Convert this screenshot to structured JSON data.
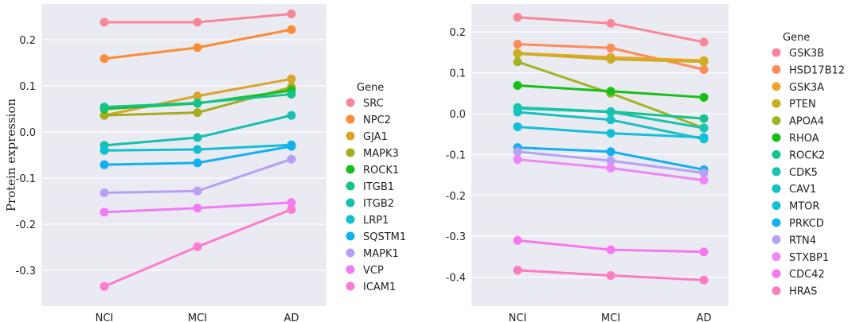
{
  "chart_data": [
    {
      "type": "line",
      "title": "",
      "xlabel": "",
      "ylabel": "Protein expression",
      "categories": [
        "NCI",
        "MCI",
        "AD"
      ],
      "ylim": [
        -0.37,
        0.28
      ],
      "yticks": [
        -0.3,
        -0.2,
        -0.1,
        0.0,
        0.1,
        0.2
      ],
      "grid": true,
      "legend_title": "Gene",
      "legend_position": "right",
      "series": [
        {
          "name": "SRC",
          "color": "#f8869b",
          "values": [
            0.238,
            0.238,
            0.256
          ]
        },
        {
          "name": "NPC2",
          "color": "#fa8c35",
          "values": [
            0.159,
            0.183,
            0.222
          ]
        },
        {
          "name": "GJA1",
          "color": "#d9a52b",
          "values": [
            0.036,
            0.078,
            0.115
          ]
        },
        {
          "name": "MAPK3",
          "color": "#a3ad1e",
          "values": [
            0.036,
            0.042,
            0.097
          ]
        },
        {
          "name": "ROCK1",
          "color": "#18c01d",
          "values": [
            0.05,
            0.062,
            0.09
          ]
        },
        {
          "name": "ITGB1",
          "color": "#14c38a",
          "values": [
            0.054,
            0.063,
            0.082
          ]
        },
        {
          "name": "ITGB2",
          "color": "#18bfb0",
          "values": [
            -0.029,
            -0.012,
            0.036
          ]
        },
        {
          "name": "LRP1",
          "color": "#12bfd0",
          "values": [
            -0.04,
            -0.038,
            -0.028
          ]
        },
        {
          "name": "SQSTM1",
          "color": "#12b0f0",
          "values": [
            -0.071,
            -0.067,
            -0.031
          ]
        },
        {
          "name": "MAPK1",
          "color": "#b5a0f5",
          "values": [
            -0.132,
            -0.128,
            -0.059
          ]
        },
        {
          "name": "VCP",
          "color": "#f07cf5",
          "values": [
            -0.174,
            -0.165,
            -0.153
          ]
        },
        {
          "name": "ICAM1",
          "color": "#fc7cd0",
          "values": [
            -0.335,
            -0.249,
            -0.168
          ]
        }
      ]
    },
    {
      "type": "line",
      "title": "",
      "xlabel": "",
      "ylabel": "",
      "categories": [
        "NCI",
        "MCI",
        "AD"
      ],
      "ylim": [
        -0.45,
        0.26
      ],
      "yticks": [
        -0.4,
        -0.3,
        -0.2,
        -0.1,
        0.0,
        0.1,
        0.2
      ],
      "grid": true,
      "legend_title": "Gene",
      "legend_position": "right",
      "series": [
        {
          "name": "GSK3B",
          "color": "#fa8799",
          "values": [
            0.236,
            0.221,
            0.175
          ]
        },
        {
          "name": "HSD17B12",
          "color": "#fc8c5a",
          "values": [
            0.17,
            0.161,
            0.108
          ]
        },
        {
          "name": "GSK3A",
          "color": "#f2a22c",
          "values": [
            0.148,
            0.138,
            0.13
          ]
        },
        {
          "name": "PTEN",
          "color": "#c8ae20",
          "values": [
            0.147,
            0.133,
            0.127
          ]
        },
        {
          "name": "APOA4",
          "color": "#a0b423",
          "values": [
            0.127,
            0.05,
            -0.035
          ]
        },
        {
          "name": "RHOA",
          "color": "#16c116",
          "values": [
            0.069,
            0.055,
            0.04
          ]
        },
        {
          "name": "ROCK2",
          "color": "#14c491",
          "values": [
            0.015,
            0.005,
            -0.012
          ]
        },
        {
          "name": "CDK5",
          "color": "#17c4ae",
          "values": [
            0.013,
            0.004,
            -0.035
          ]
        },
        {
          "name": "CAV1",
          "color": "#17c0c2",
          "values": [
            0.004,
            -0.015,
            -0.062
          ]
        },
        {
          "name": "MTOR",
          "color": "#12bfd8",
          "values": [
            -0.032,
            -0.048,
            -0.058
          ]
        },
        {
          "name": "PRKCD",
          "color": "#12b0f2",
          "values": [
            -0.083,
            -0.093,
            -0.137
          ]
        },
        {
          "name": "RTN4",
          "color": "#b5a2f5",
          "values": [
            -0.093,
            -0.115,
            -0.145
          ]
        },
        {
          "name": "STXBP1",
          "color": "#ef86f7",
          "values": [
            -0.112,
            -0.133,
            -0.163
          ]
        },
        {
          "name": "CDC42",
          "color": "#f877ef",
          "values": [
            -0.31,
            -0.333,
            -0.338
          ]
        },
        {
          "name": "HRAS",
          "color": "#fc7cc0",
          "values": [
            -0.383,
            -0.396,
            -0.407
          ]
        }
      ]
    }
  ]
}
